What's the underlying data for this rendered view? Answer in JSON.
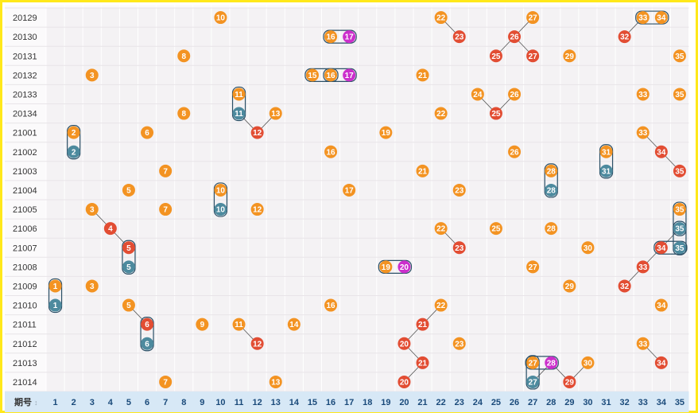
{
  "chart_data": {
    "type": "table",
    "header_label": "期号",
    "columns": [
      "1",
      "2",
      "3",
      "4",
      "5",
      "6",
      "7",
      "8",
      "9",
      "10",
      "11",
      "12",
      "13",
      "14",
      "15",
      "16",
      "17",
      "18",
      "19",
      "20",
      "21",
      "22",
      "23",
      "24",
      "25",
      "26",
      "27",
      "28",
      "29",
      "30",
      "31",
      "32",
      "33",
      "34",
      "35"
    ],
    "rows": [
      {
        "period": "20129",
        "numbers": [
          10,
          22,
          27,
          33,
          34
        ]
      },
      {
        "period": "20130",
        "numbers": [
          16,
          17,
          23,
          26,
          32
        ]
      },
      {
        "period": "20131",
        "numbers": [
          8,
          25,
          27,
          29,
          35
        ]
      },
      {
        "period": "20132",
        "numbers": [
          3,
          15,
          16,
          17,
          21
        ]
      },
      {
        "period": "20133",
        "numbers": [
          11,
          24,
          26,
          33,
          35
        ]
      },
      {
        "period": "20134",
        "numbers": [
          8,
          11,
          13,
          22,
          25
        ]
      },
      {
        "period": "21001",
        "numbers": [
          2,
          6,
          12,
          19,
          33
        ]
      },
      {
        "period": "21002",
        "numbers": [
          2,
          16,
          26,
          31,
          34
        ]
      },
      {
        "period": "21003",
        "numbers": [
          7,
          21,
          28,
          31,
          35
        ]
      },
      {
        "period": "21004",
        "numbers": [
          5,
          10,
          17,
          23,
          28
        ]
      },
      {
        "period": "21005",
        "numbers": [
          3,
          7,
          10,
          12,
          35
        ]
      },
      {
        "period": "21006",
        "numbers": [
          4,
          22,
          25,
          28,
          35
        ]
      },
      {
        "period": "21007",
        "numbers": [
          5,
          23,
          30,
          34,
          35
        ]
      },
      {
        "period": "21008",
        "numbers": [
          5,
          19,
          20,
          27,
          33
        ]
      },
      {
        "period": "21009",
        "numbers": [
          1,
          3,
          29,
          32
        ]
      },
      {
        "period": "21010",
        "numbers": [
          1,
          5,
          16,
          22,
          34
        ]
      },
      {
        "period": "21011",
        "numbers": [
          6,
          9,
          11,
          14,
          21
        ]
      },
      {
        "period": "21012",
        "numbers": [
          6,
          12,
          20,
          23,
          33
        ]
      },
      {
        "period": "21013",
        "numbers": [
          21,
          27,
          28,
          30,
          34
        ]
      },
      {
        "period": "21014",
        "numbers": [
          7,
          13,
          20,
          27,
          29
        ]
      }
    ],
    "colors": {
      "orange": "#f39322",
      "red": "#e24d33",
      "teal": "#4d8a9e",
      "magenta": "#cc2fcc",
      "brown": "#5a3010",
      "grid_bg": "#f4f2f4",
      "grid_line": "#ffffff",
      "footer_bg": "#d7e8f6",
      "frame": "#ffe81a"
    }
  }
}
